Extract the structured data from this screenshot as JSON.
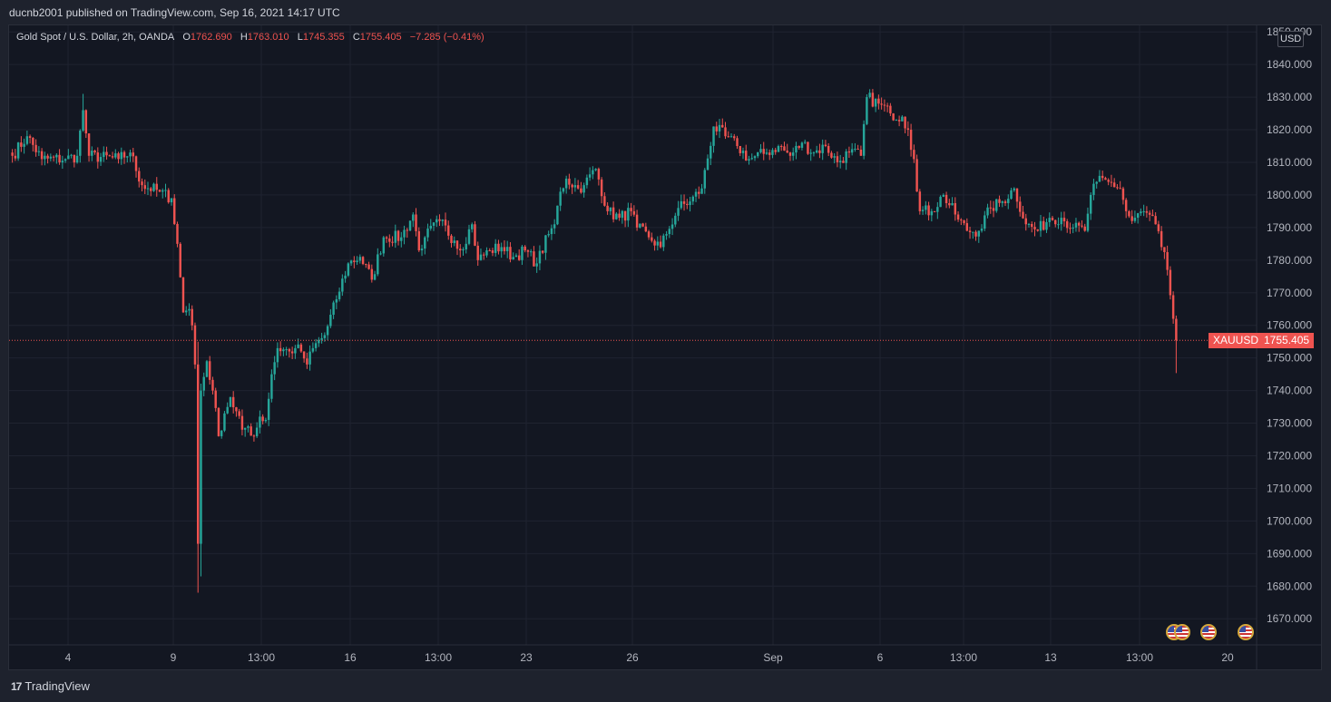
{
  "header": {
    "publish_line": "ducnb2001 published on TradingView.com, Sep 16, 2021 14:17 UTC"
  },
  "legend": {
    "symbol": "Gold Spot / U.S. Dollar, 2h, OANDA",
    "open_label": "O",
    "open": "1762.690",
    "high_label": "H",
    "high": "1763.010",
    "low_label": "L",
    "low": "1745.355",
    "close_label": "C",
    "close": "1755.405",
    "change": "−7.285 (−0.41%)"
  },
  "price_axis": {
    "currency": "USD",
    "ticks": [
      "1670.000",
      "1680.000",
      "1690.000",
      "1700.000",
      "1710.000",
      "1720.000",
      "1730.000",
      "1740.000",
      "1750.000",
      "1760.000",
      "1770.000",
      "1780.000",
      "1790.000",
      "1800.000",
      "1810.000",
      "1820.000",
      "1830.000",
      "1840.000",
      "1850.000"
    ],
    "last_symbol": "XAUUSD",
    "last_price": "1755.405"
  },
  "time_axis": {
    "labels": [
      "4",
      "9",
      "13:00",
      "16",
      "13:00",
      "23",
      "26",
      "Sep",
      "6",
      "13:00",
      "13",
      "13:00",
      "20"
    ]
  },
  "footer": {
    "brand": "TradingView",
    "brand_mark": "17"
  },
  "colors": {
    "up": "#26a69a",
    "down": "#ef5350",
    "background": "#131722",
    "grid": "#1f2330",
    "text": "#b2b5be"
  },
  "events": {
    "icons": [
      "us-flag-icon",
      "us-flag-icon",
      "us-flag-icon",
      "us-flag-icon"
    ]
  },
  "chart_data": {
    "type": "candlestick",
    "symbol": "XAUUSD",
    "interval": "2h",
    "ylim": [
      1662,
      1852
    ],
    "last_price": 1755.405,
    "series": [
      {
        "name": "XAUUSD",
        "anchors": [
          [
            0,
            1812
          ],
          [
            5,
            1818
          ],
          [
            10,
            1811
          ],
          [
            18,
            1811
          ],
          [
            22,
            1812
          ],
          [
            24,
            1826
          ],
          [
            26,
            1812
          ],
          [
            36,
            1811
          ],
          [
            40,
            1813
          ],
          [
            44,
            1803
          ],
          [
            50,
            1801
          ],
          [
            54,
            1799
          ],
          [
            56,
            1785
          ],
          [
            58,
            1764
          ],
          [
            60,
            1765
          ],
          [
            61,
            1760
          ],
          [
            62,
            1748
          ],
          [
            63,
            1693
          ],
          [
            64,
            1740
          ],
          [
            66,
            1749
          ],
          [
            68,
            1740
          ],
          [
            70,
            1726
          ],
          [
            72,
            1733
          ],
          [
            74,
            1738
          ],
          [
            78,
            1728
          ],
          [
            80,
            1729
          ],
          [
            82,
            1726
          ],
          [
            84,
            1732
          ],
          [
            86,
            1731
          ],
          [
            88,
            1745
          ],
          [
            90,
            1753
          ],
          [
            94,
            1752
          ],
          [
            96,
            1753
          ],
          [
            98,
            1752
          ],
          [
            100,
            1748
          ],
          [
            102,
            1753
          ],
          [
            106,
            1757
          ],
          [
            110,
            1768
          ],
          [
            114,
            1779
          ],
          [
            118,
            1781
          ],
          [
            122,
            1774
          ],
          [
            126,
            1787
          ],
          [
            132,
            1787
          ],
          [
            136,
            1794
          ],
          [
            138,
            1783
          ],
          [
            140,
            1787
          ],
          [
            145,
            1792
          ],
          [
            150,
            1786
          ],
          [
            152,
            1783
          ],
          [
            156,
            1791
          ],
          [
            158,
            1780
          ],
          [
            162,
            1783
          ],
          [
            166,
            1784
          ],
          [
            170,
            1781
          ],
          [
            174,
            1783
          ],
          [
            178,
            1779
          ],
          [
            182,
            1788
          ],
          [
            184,
            1791
          ],
          [
            186,
            1801
          ],
          [
            188,
            1805
          ],
          [
            192,
            1802
          ],
          [
            194,
            1803
          ],
          [
            198,
            1808
          ],
          [
            202,
            1795
          ],
          [
            206,
            1793
          ],
          [
            210,
            1795
          ],
          [
            212,
            1790
          ],
          [
            216,
            1787
          ],
          [
            220,
            1784
          ],
          [
            222,
            1788
          ],
          [
            226,
            1796
          ],
          [
            230,
            1798
          ],
          [
            234,
            1802
          ],
          [
            238,
            1821
          ],
          [
            242,
            1818
          ],
          [
            246,
            1815
          ],
          [
            250,
            1811
          ],
          [
            256,
            1813
          ],
          [
            260,
            1815
          ],
          [
            264,
            1812
          ],
          [
            268,
            1816
          ],
          [
            272,
            1813
          ],
          [
            276,
            1815
          ],
          [
            280,
            1810
          ],
          [
            284,
            1813
          ],
          [
            288,
            1812
          ],
          [
            290,
            1830
          ],
          [
            294,
            1828
          ],
          [
            298,
            1825
          ],
          [
            302,
            1824
          ],
          [
            304,
            1820
          ],
          [
            306,
            1811
          ],
          [
            308,
            1795
          ],
          [
            312,
            1795
          ],
          [
            316,
            1800
          ],
          [
            320,
            1794
          ],
          [
            324,
            1789
          ],
          [
            328,
            1789
          ],
          [
            332,
            1796
          ],
          [
            336,
            1798
          ],
          [
            340,
            1802
          ],
          [
            344,
            1791
          ],
          [
            348,
            1789
          ],
          [
            352,
            1793
          ],
          [
            356,
            1793
          ],
          [
            360,
            1790
          ],
          [
            364,
            1789
          ],
          [
            366,
            1800
          ],
          [
            368,
            1804
          ],
          [
            372,
            1804
          ],
          [
            376,
            1802
          ],
          [
            378,
            1795
          ],
          [
            380,
            1792
          ],
          [
            384,
            1795
          ],
          [
            388,
            1791
          ],
          [
            390,
            1784
          ],
          [
            392,
            1777
          ],
          [
            394,
            1762
          ],
          [
            395,
            1755.405
          ]
        ]
      }
    ]
  }
}
